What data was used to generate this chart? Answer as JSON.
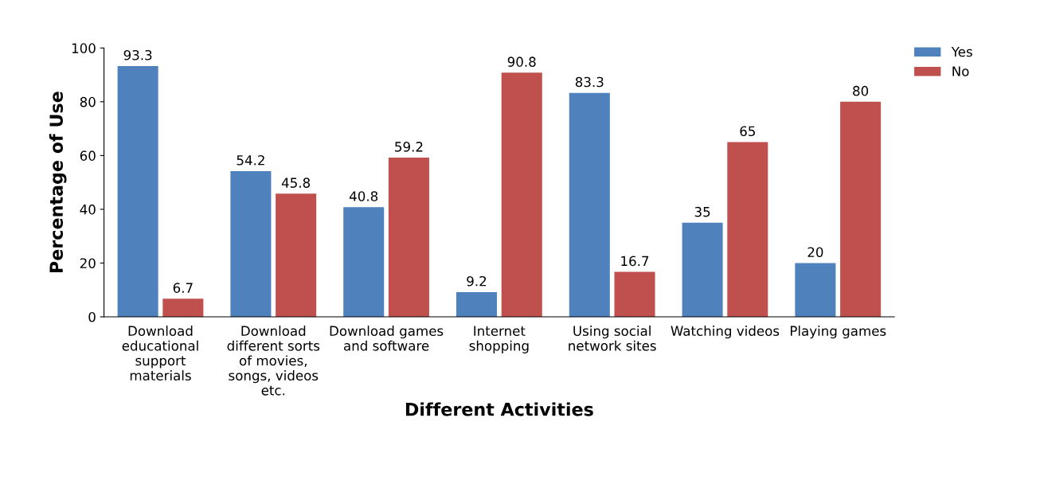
{
  "chart_data": {
    "type": "bar",
    "xlabel": "Different Activities",
    "ylabel": "Percentage of Use",
    "categories": [
      "Download educational support materials",
      "Download different sorts of movies, songs, videos etc.",
      "Download games and software",
      "Internet shopping",
      "Using social network sites",
      "Watching videos",
      "Playing games"
    ],
    "series": [
      {
        "name": "Yes",
        "color": "#4f81bd",
        "values": [
          93.3,
          54.2,
          40.8,
          9.2,
          83.3,
          35,
          20
        ]
      },
      {
        "name": "No",
        "color": "#c0504d",
        "values": [
          6.7,
          45.8,
          59.2,
          90.8,
          16.7,
          65,
          80
        ]
      }
    ],
    "ylim": [
      0,
      100
    ],
    "yticks": [
      0,
      20,
      40,
      60,
      80,
      100
    ],
    "data_labels": true,
    "legend": "top right",
    "grid": false
  }
}
